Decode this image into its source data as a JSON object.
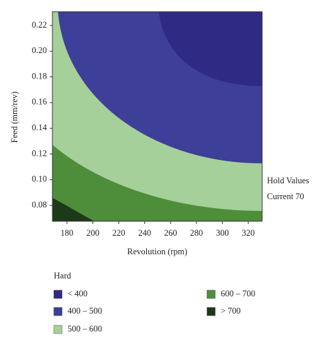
{
  "chart_data": {
    "type": "contour",
    "x_label": "Revolution (rpm)",
    "y_label": "Feed (mm/rev)",
    "xlim": [
      168.8,
      330.7
    ],
    "xticks": [
      180,
      200,
      220,
      240,
      260,
      280,
      300,
      320
    ],
    "ylim": [
      0.0677,
      0.2307
    ],
    "yticks": [
      0.08,
      {
        "value": 0.1,
        "label": "0.10"
      },
      0.12,
      0.14,
      0.16,
      0.18,
      {
        "value": 0.2,
        "label": "0.20"
      },
      0.22
    ],
    "annotations": [
      "Hold Values",
      "Current 70"
    ],
    "legend_title": "Hard",
    "series": [
      {
        "name": "< 400",
        "color": "#2f2b85"
      },
      {
        "name": "400 – 500",
        "color": "#3d3f98"
      },
      {
        "name": "500 – 600",
        "color": "#a5d09a"
      },
      {
        "name": "600 – 700",
        "color": "#4e8e3b"
      },
      {
        "name": "> 700",
        "color": "#1c3a18"
      }
    ]
  }
}
